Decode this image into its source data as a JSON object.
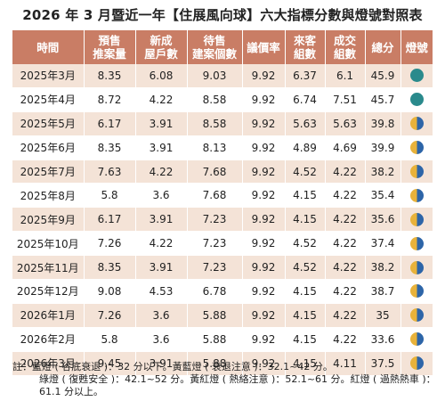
{
  "title": "2026 年 3 月暨近一年【住展風向球】六大指標分數與燈號對照表",
  "columns": [
    [
      "時間"
    ],
    [
      "預售",
      "推案量"
    ],
    [
      "新成",
      "屋戶數"
    ],
    [
      "待售",
      "建案個數"
    ],
    [
      "議價率"
    ],
    [
      "來客",
      "組數"
    ],
    [
      "成交",
      "組數"
    ],
    [
      "總分"
    ],
    [
      "燈號"
    ]
  ],
  "rows": [
    {
      "time": "2025年3月",
      "v1": "8.35",
      "v2": "6.08",
      "v3": "9.03",
      "v4": "9.92",
      "v5": "6.37",
      "v6": "6.1",
      "total": "45.9",
      "lamp": "teal"
    },
    {
      "time": "2025年4月",
      "v1": "8.72",
      "v2": "4.22",
      "v3": "8.58",
      "v4": "9.92",
      "v5": "6.74",
      "v6": "7.51",
      "total": "45.7",
      "lamp": "teal"
    },
    {
      "time": "2025年5月",
      "v1": "6.17",
      "v2": "3.91",
      "v3": "8.58",
      "v4": "9.92",
      "v5": "5.63",
      "v6": "5.63",
      "total": "39.8",
      "lamp": "yellow-blue"
    },
    {
      "time": "2025年6月",
      "v1": "8.35",
      "v2": "3.91",
      "v3": "8.13",
      "v4": "9.92",
      "v5": "4.89",
      "v6": "4.69",
      "total": "39.9",
      "lamp": "yellow-blue"
    },
    {
      "time": "2025年7月",
      "v1": "7.63",
      "v2": "4.22",
      "v3": "7.68",
      "v4": "9.92",
      "v5": "4.52",
      "v6": "4.22",
      "total": "38.2",
      "lamp": "yellow-blue"
    },
    {
      "time": "2025年8月",
      "v1": "5.8",
      "v2": "3.6",
      "v3": "7.68",
      "v4": "9.92",
      "v5": "4.15",
      "v6": "4.22",
      "total": "35.4",
      "lamp": "yellow-blue"
    },
    {
      "time": "2025年9月",
      "v1": "6.17",
      "v2": "3.91",
      "v3": "7.23",
      "v4": "9.92",
      "v5": "4.15",
      "v6": "4.22",
      "total": "35.6",
      "lamp": "yellow-blue"
    },
    {
      "time": "2025年10月",
      "v1": "7.26",
      "v2": "4.22",
      "v3": "7.23",
      "v4": "9.92",
      "v5": "4.52",
      "v6": "4.22",
      "total": "37.4",
      "lamp": "yellow-blue"
    },
    {
      "time": "2025年11月",
      "v1": "8.35",
      "v2": "3.91",
      "v3": "7.23",
      "v4": "9.92",
      "v5": "4.52",
      "v6": "4.22",
      "total": "38.2",
      "lamp": "yellow-blue"
    },
    {
      "time": "2025年12月",
      "v1": "9.08",
      "v2": "4.53",
      "v3": "6.78",
      "v4": "9.92",
      "v5": "4.15",
      "v6": "4.22",
      "total": "38.7",
      "lamp": "yellow-blue"
    },
    {
      "time": "2026年1月",
      "v1": "7.26",
      "v2": "3.6",
      "v3": "5.88",
      "v4": "9.92",
      "v5": "4.15",
      "v6": "4.22",
      "total": "35",
      "lamp": "yellow-blue"
    },
    {
      "time": "2026年2月",
      "v1": "5.8",
      "v2": "3.6",
      "v3": "5.88",
      "v4": "9.92",
      "v5": "4.15",
      "v6": "4.22",
      "total": "33.6",
      "lamp": "yellow-blue"
    },
    {
      "time": "2026年3月",
      "v1": "9.45",
      "v2": "3.91",
      "v3": "5.88",
      "v4": "9.92",
      "v5": "4.15",
      "v6": "4.11",
      "total": "37.5",
      "lamp": "yellow-blue"
    }
  ],
  "note": {
    "line1": "註：藍燈 ( 谷底衰退 )：32 分以下。黃藍燈 ( 衰退注意 )：32.1~42 分。",
    "line2": "綠燈 ( 復甦安全 )：42.1~52 分。黃紅燈 ( 熱絡注意 )：52.1~61 分。紅燈 ( 過熱熱車 )：61.1 分以上。"
  },
  "colors": {
    "header_bg": "#c97d65",
    "row_alt_bg": "#f4e3d7",
    "lamp_teal": "#2a8a8c",
    "lamp_yellow": "#e8b23a",
    "lamp_blue": "#2d65a8"
  }
}
